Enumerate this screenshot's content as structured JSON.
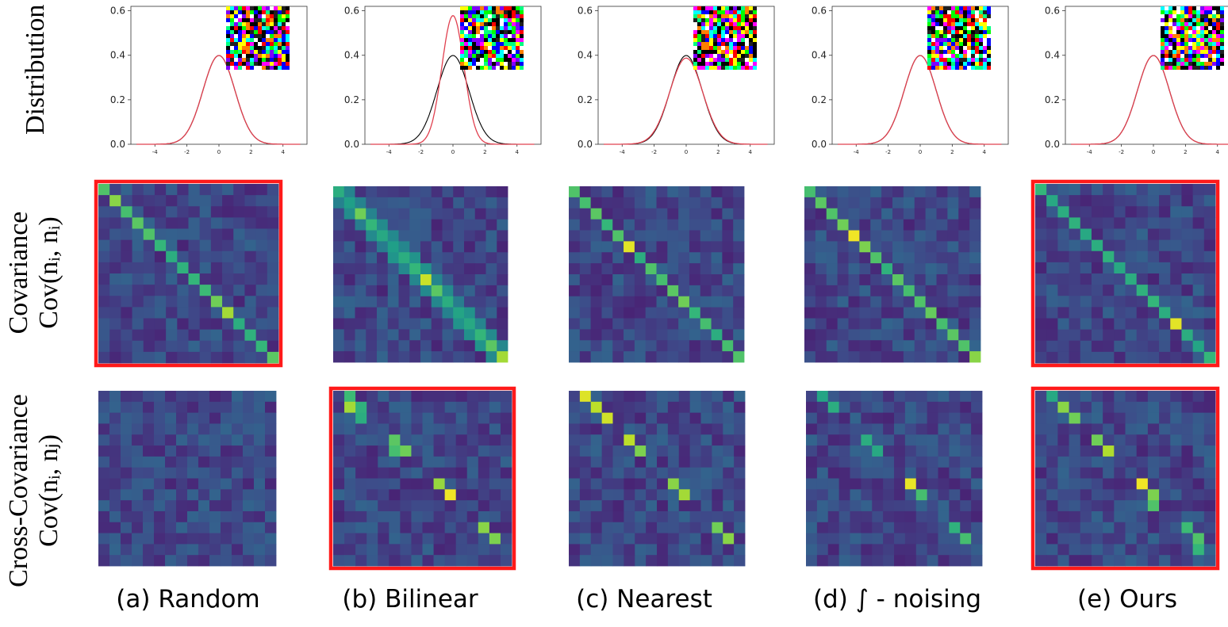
{
  "row_labels": {
    "distribution": "Distribution",
    "covariance_title": "Covariance",
    "covariance_formula": "Cov(nᵢ, nᵢ)",
    "cross_title": "Cross-Covariance",
    "cross_formula": "Cov(nᵢ, nⱼ)"
  },
  "captions": [
    "(a) Random",
    "(b) Bilinear",
    "(c) Nearest",
    "(d) ∫ - noising",
    "(e) Ours"
  ],
  "colors": {
    "highlight": "#ff1a1a",
    "reference_curve": "#000000",
    "noise_curve": "#e0404f",
    "colormap": "viridis"
  },
  "chart_data": [
    {
      "type": "line",
      "panel": "(a) Random",
      "ylim": [
        0,
        0.62
      ],
      "xlim": [
        -5.5,
        5.5
      ],
      "y_ticks": [
        "0.0",
        "0.2",
        "0.4",
        "0.6"
      ],
      "x_ticks": [
        "-4",
        "-2",
        "0",
        "2",
        "4"
      ],
      "series": [
        {
          "kind": "reference",
          "sigma": 1.0
        },
        {
          "kind": "noise",
          "sigma": 1.0
        }
      ],
      "inset": "noise-image"
    },
    {
      "type": "line",
      "panel": "(b) Bilinear",
      "ylim": [
        0,
        0.62
      ],
      "xlim": [
        -5.5,
        5.5
      ],
      "y_ticks": [
        "0.0",
        "0.2",
        "0.4",
        "0.6"
      ],
      "x_ticks": [
        "-4",
        "-2",
        "0",
        "2",
        "4"
      ],
      "series": [
        {
          "kind": "reference",
          "sigma": 1.0
        },
        {
          "kind": "noise",
          "sigma": 0.69
        }
      ],
      "inset": "noise-image"
    },
    {
      "type": "line",
      "panel": "(c) Nearest",
      "ylim": [
        0,
        0.62
      ],
      "xlim": [
        -5.5,
        5.5
      ],
      "y_ticks": [
        "0.0",
        "0.2",
        "0.4",
        "0.6"
      ],
      "x_ticks": [
        "-4",
        "-2",
        "0",
        "2",
        "4"
      ],
      "series": [
        {
          "kind": "reference",
          "sigma": 1.0
        },
        {
          "kind": "noise",
          "sigma": 1.03
        }
      ],
      "inset": "noise-image"
    },
    {
      "type": "line",
      "panel": "(d) ∫ - noising",
      "ylim": [
        0,
        0.62
      ],
      "xlim": [
        -5.5,
        5.5
      ],
      "y_ticks": [
        "0.0",
        "0.2",
        "0.4",
        "0.6"
      ],
      "x_ticks": [
        "-4",
        "-2",
        "0",
        "2",
        "4"
      ],
      "series": [
        {
          "kind": "reference",
          "sigma": 1.0
        },
        {
          "kind": "noise",
          "sigma": 1.0
        }
      ],
      "inset": "noise-image"
    },
    {
      "type": "line",
      "panel": "(e) Ours",
      "ylim": [
        0,
        0.62
      ],
      "xlim": [
        -5.5,
        5.5
      ],
      "y_ticks": [
        "0.0",
        "0.2",
        "0.4",
        "0.6"
      ],
      "x_ticks": [
        "-4",
        "-2",
        "0",
        "2",
        "4"
      ],
      "series": [
        {
          "kind": "reference",
          "sigma": 1.0
        },
        {
          "kind": "noise",
          "sigma": 1.0
        }
      ],
      "inset": "noise-image"
    },
    {
      "type": "heatmap",
      "panel": "(a) Random",
      "matrix": "covariance",
      "diagonal": [
        0.72,
        0.82,
        0.7,
        0.74,
        0.72,
        0.66,
        0.62,
        0.64,
        0.66,
        0.68,
        0.78,
        0.86,
        0.62,
        0.64,
        0.66,
        0.74
      ],
      "highlighted": true
    },
    {
      "type": "heatmap",
      "panel": "(b) Bilinear",
      "matrix": "covariance",
      "diagonal": [
        0.62,
        0.56,
        0.78,
        0.66,
        0.6,
        0.56,
        0.62,
        0.66,
        0.92,
        0.74,
        0.62,
        0.58,
        0.6,
        0.66,
        0.74,
        0.86
      ],
      "off_diagonal": "adjacent",
      "highlighted": false
    },
    {
      "type": "heatmap",
      "panel": "(c) Nearest",
      "matrix": "covariance",
      "diagonal": [
        0.72,
        0.7,
        0.74,
        0.66,
        0.72,
        0.96,
        0.62,
        0.72,
        0.7,
        0.74,
        0.78,
        0.66,
        0.7,
        0.62,
        0.7,
        0.72
      ],
      "highlighted": false
    },
    {
      "type": "heatmap",
      "panel": "(d) ∫ - noising",
      "matrix": "covariance",
      "diagonal": [
        0.7,
        0.74,
        0.72,
        0.78,
        0.98,
        0.8,
        0.72,
        0.64,
        0.74,
        0.7,
        0.72,
        0.76,
        0.7,
        0.74,
        0.72,
        0.82
      ],
      "highlighted": false
    },
    {
      "type": "heatmap",
      "panel": "(e) Ours",
      "matrix": "covariance",
      "diagonal": [
        0.66,
        0.6,
        0.62,
        0.64,
        0.6,
        0.62,
        0.64,
        0.6,
        0.62,
        0.64,
        0.66,
        0.62,
        0.96,
        0.62,
        0.58,
        0.66
      ],
      "highlighted": true
    },
    {
      "type": "heatmap",
      "panel": "(a) Random",
      "matrix": "cross_covariance",
      "peaks": [],
      "highlighted": false
    },
    {
      "type": "heatmap",
      "panel": "(b) Bilinear",
      "matrix": "cross_covariance",
      "peaks": [
        [
          0,
          1,
          0.68
        ],
        [
          1,
          1,
          0.86
        ],
        [
          1,
          2,
          0.64
        ],
        [
          2,
          2,
          0.62
        ],
        [
          4,
          5,
          0.74
        ],
        [
          5,
          5,
          0.7
        ],
        [
          5,
          6,
          0.78
        ],
        [
          8,
          9,
          0.84
        ],
        [
          9,
          10,
          0.98
        ],
        [
          12,
          13,
          0.82
        ],
        [
          13,
          14,
          0.8
        ]
      ],
      "highlighted": true
    },
    {
      "type": "heatmap",
      "panel": "(c) Nearest",
      "matrix": "cross_covariance",
      "peaks": [
        [
          0,
          1,
          0.95
        ],
        [
          1,
          2,
          0.9
        ],
        [
          2,
          3,
          0.93
        ],
        [
          4,
          5,
          0.9
        ],
        [
          5,
          6,
          0.8
        ],
        [
          8,
          9,
          0.82
        ],
        [
          9,
          10,
          0.86
        ],
        [
          12,
          13,
          0.78
        ],
        [
          13,
          14,
          0.82
        ]
      ],
      "highlighted": false
    },
    {
      "type": "heatmap",
      "panel": "(d) ∫ - noising",
      "matrix": "cross_covariance",
      "peaks": [
        [
          0,
          1,
          0.58
        ],
        [
          1,
          2,
          0.62
        ],
        [
          4,
          5,
          0.62
        ],
        [
          5,
          6,
          0.6
        ],
        [
          8,
          9,
          0.97
        ],
        [
          9,
          10,
          0.7
        ],
        [
          12,
          13,
          0.64
        ],
        [
          13,
          14,
          0.7
        ]
      ],
      "highlighted": false
    },
    {
      "type": "heatmap",
      "panel": "(e) Ours",
      "matrix": "cross_covariance",
      "peaks": [
        [
          0,
          1,
          0.6
        ],
        [
          1,
          2,
          0.82
        ],
        [
          2,
          3,
          0.78
        ],
        [
          4,
          5,
          0.78
        ],
        [
          5,
          6,
          0.88
        ],
        [
          8,
          9,
          0.98
        ],
        [
          9,
          10,
          0.8
        ],
        [
          10,
          10,
          0.72
        ],
        [
          12,
          13,
          0.68
        ],
        [
          13,
          14,
          0.72
        ],
        [
          14,
          14,
          0.66
        ]
      ],
      "highlighted": true
    }
  ]
}
